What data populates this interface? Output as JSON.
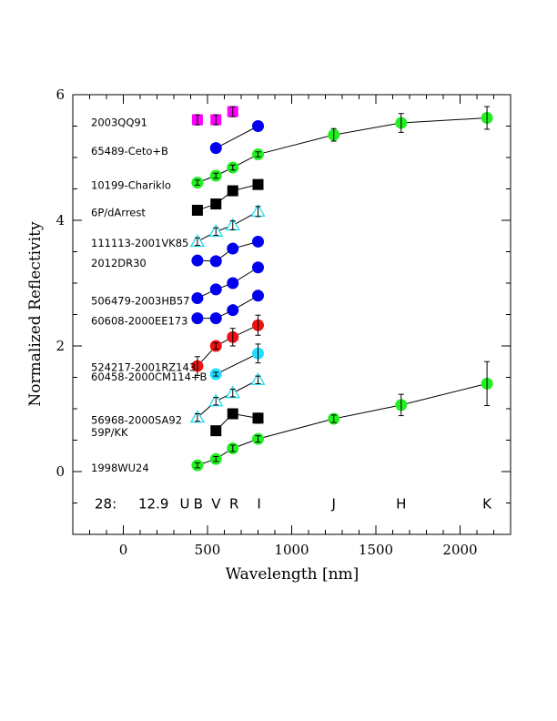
{
  "chart_data": {
    "type": "scatter",
    "title": "",
    "xlabel": "Wavelength [nm]",
    "ylabel": "Normalized Reflectivity",
    "xlim": [
      -300,
      2300
    ],
    "ylim": [
      -1,
      6
    ],
    "xticks": [
      0,
      500,
      1000,
      1500,
      2000
    ],
    "yticks": [
      0,
      2,
      4,
      6
    ],
    "colors": {
      "magenta": "#ff00ff",
      "blue": "#0000ee",
      "green": "#22ee22",
      "black": "#000000",
      "red": "#ee1111",
      "cyan": "#22ddff",
      "open_triangle": "#22ddee"
    },
    "annotation_row": {
      "prefix": "28:",
      "magnitude": "12.9",
      "bands": [
        {
          "label": "U",
          "x": 365
        },
        {
          "label": "B",
          "x": 445
        },
        {
          "label": "V",
          "x": 551
        },
        {
          "label": "R",
          "x": 658
        },
        {
          "label": "I",
          "x": 806
        },
        {
          "label": "J",
          "x": 1250
        },
        {
          "label": "H",
          "x": 1650
        },
        {
          "label": "K",
          "x": 2160
        }
      ]
    },
    "series": [
      {
        "name": "2003QQ91",
        "marker": "square",
        "color": "magenta",
        "connected": false,
        "x": [
          440,
          550,
          650
        ],
        "y": [
          5.6,
          5.6,
          5.73
        ],
        "err": [
          0.08,
          0.08,
          0.08
        ]
      },
      {
        "name": "65489-Ceto+B",
        "marker": "circle",
        "color": "blue",
        "connected": true,
        "x": [
          550,
          800
        ],
        "y": [
          5.15,
          5.5
        ],
        "err": [
          0,
          0
        ]
      },
      {
        "name": "10199-Chariklo",
        "marker": "circle",
        "color": "green",
        "connected": true,
        "x": [
          440,
          550,
          650,
          800,
          1250,
          1650,
          2160
        ],
        "y": [
          4.6,
          4.71,
          4.84,
          5.05,
          5.36,
          5.55,
          5.63
        ],
        "err": [
          0.04,
          0.04,
          0.04,
          0.04,
          0.1,
          0.15,
          0.18
        ]
      },
      {
        "name": "6P/dArrest",
        "marker": "square",
        "color": "black",
        "connected": true,
        "x": [
          440,
          550,
          650,
          800
        ],
        "y": [
          4.16,
          4.26,
          4.47,
          4.57
        ],
        "err": [
          0,
          0,
          0,
          0
        ]
      },
      {
        "name": "111113-2001VK85",
        "marker": "triangle-open",
        "color": "open_triangle",
        "connected": true,
        "x": [
          440,
          550,
          650,
          800
        ],
        "y": [
          3.66,
          3.82,
          3.92,
          4.14
        ],
        "err": [
          0.06,
          0.06,
          0.07,
          0.08
        ]
      },
      {
        "name": "2012DR30",
        "marker": "circle",
        "color": "blue",
        "connected": true,
        "x": [
          440,
          550,
          650,
          800
        ],
        "y": [
          3.36,
          3.35,
          3.55,
          3.66
        ],
        "err": [
          0,
          0,
          0,
          0
        ]
      },
      {
        "name": "506479-2003HB57",
        "marker": "circle",
        "color": "blue",
        "connected": true,
        "x": [
          440,
          550,
          650,
          800
        ],
        "y": [
          2.76,
          2.9,
          3.0,
          3.25
        ],
        "err": [
          0,
          0,
          0,
          0
        ]
      },
      {
        "name": "60608-2000EE173",
        "marker": "circle",
        "color": "blue",
        "connected": true,
        "x": [
          440,
          550,
          650,
          800
        ],
        "y": [
          2.44,
          2.44,
          2.57,
          2.8
        ],
        "err": [
          0,
          0,
          0,
          0
        ]
      },
      {
        "name": "524217-2001RZ143",
        "marker": "circle",
        "color": "red",
        "connected": true,
        "x": [
          440,
          550,
          650,
          800
        ],
        "y": [
          1.68,
          2.0,
          2.14,
          2.33
        ],
        "err": [
          0.15,
          0.05,
          0.14,
          0.16
        ]
      },
      {
        "name": "60458-2000CM114+B",
        "marker": "circle",
        "color": "cyan",
        "connected": true,
        "x": [
          550,
          800
        ],
        "y": [
          1.55,
          1.88
        ],
        "err": [
          0.03,
          0.15
        ]
      },
      {
        "name": "56968-2000SA92",
        "marker": "triangle-open",
        "color": "open_triangle",
        "connected": true,
        "x": [
          440,
          550,
          650,
          800
        ],
        "y": [
          0.86,
          1.12,
          1.25,
          1.46
        ],
        "err": [
          0.06,
          0.06,
          0.06,
          0.06
        ]
      },
      {
        "name": "59P/KK",
        "marker": "square",
        "color": "black",
        "connected": true,
        "x": [
          550,
          650,
          800
        ],
        "y": [
          0.65,
          0.92,
          0.85
        ],
        "err": [
          0,
          0.05,
          0.08
        ]
      },
      {
        "name": "1998WU24",
        "marker": "circle",
        "color": "green",
        "connected": true,
        "x": [
          440,
          550,
          650,
          800,
          1250,
          1650,
          2160
        ],
        "y": [
          0.1,
          0.2,
          0.37,
          0.52,
          0.84,
          1.06,
          1.4
        ],
        "err": [
          0.04,
          0.04,
          0.05,
          0.05,
          0.06,
          0.17,
          0.35
        ]
      }
    ],
    "labels": [
      {
        "text": "2003QQ91",
        "y": 5.56
      },
      {
        "text": "65489-Ceto+B",
        "y": 5.1
      },
      {
        "text": "10199-Chariklo",
        "y": 4.56
      },
      {
        "text": "6P/dArrest",
        "y": 4.12
      },
      {
        "text": "111113-2001VK85",
        "y": 3.64
      },
      {
        "text": "2012DR30",
        "y": 3.32
      },
      {
        "text": "506479-2003HB57",
        "y": 2.72
      },
      {
        "text": "60608-2000EE173",
        "y": 2.4
      },
      {
        "text": "524217-2001RZ143",
        "y": 1.66
      },
      {
        "text": "60458-2000CM114+B",
        "y": 1.51
      },
      {
        "text": "56968-2000SA92",
        "y": 0.82
      },
      {
        "text": "59P/KK",
        "y": 0.62
      },
      {
        "text": "1998WU24",
        "y": 0.06
      }
    ]
  }
}
